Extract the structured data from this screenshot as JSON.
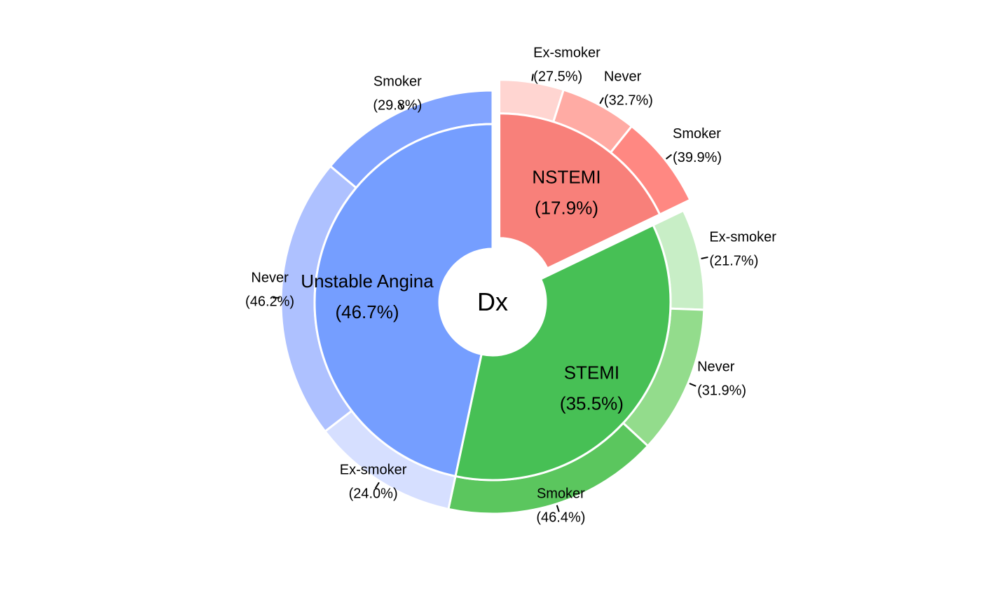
{
  "chart_data": {
    "type": "pie",
    "title": "",
    "center_label": "Dx",
    "inner": [
      {
        "label": "NSTEMI",
        "pct_label": "(17.9%)",
        "value": 17.9,
        "color": "#F8807A",
        "exploded": true
      },
      {
        "label": "STEMI",
        "pct_label": "(35.5%)",
        "value": 35.5,
        "color": "#47C055",
        "exploded": false
      },
      {
        "label": "Unstable Angina",
        "pct_label": "(46.7%)",
        "value": 46.7,
        "color": "#759EFF",
        "exploded": false
      }
    ],
    "outer": [
      {
        "group": "NSTEMI",
        "label": "Ex-smoker",
        "pct_label": "(27.5%)",
        "value": 27.5,
        "color": "#FFD5D1"
      },
      {
        "group": "NSTEMI",
        "label": "Never",
        "pct_label": "(32.7%)",
        "value": 32.7,
        "color": "#FFABA4"
      },
      {
        "group": "NSTEMI",
        "label": "Smoker",
        "pct_label": "(39.9%)",
        "value": 39.9,
        "color": "#FF8882"
      },
      {
        "group": "STEMI",
        "label": "Ex-smoker",
        "pct_label": "(21.7%)",
        "value": 21.7,
        "color": "#C8EEC6"
      },
      {
        "group": "STEMI",
        "label": "Never",
        "pct_label": "(31.9%)",
        "value": 31.9,
        "color": "#93DC8C"
      },
      {
        "group": "STEMI",
        "label": "Smoker",
        "pct_label": "(46.4%)",
        "value": 46.4,
        "color": "#5BC65E"
      },
      {
        "group": "Unstable Angina",
        "label": "Ex-smoker",
        "pct_label": "(24.0%)",
        "value": 24.0,
        "color": "#D6DFFF"
      },
      {
        "group": "Unstable Angina",
        "label": "Never",
        "pct_label": "(46.2%)",
        "value": 46.2,
        "color": "#AEC1FF"
      },
      {
        "group": "Unstable Angina",
        "label": "Smoker",
        "pct_label": "(29.8%)",
        "value": 29.8,
        "color": "#82A4FF"
      }
    ]
  }
}
